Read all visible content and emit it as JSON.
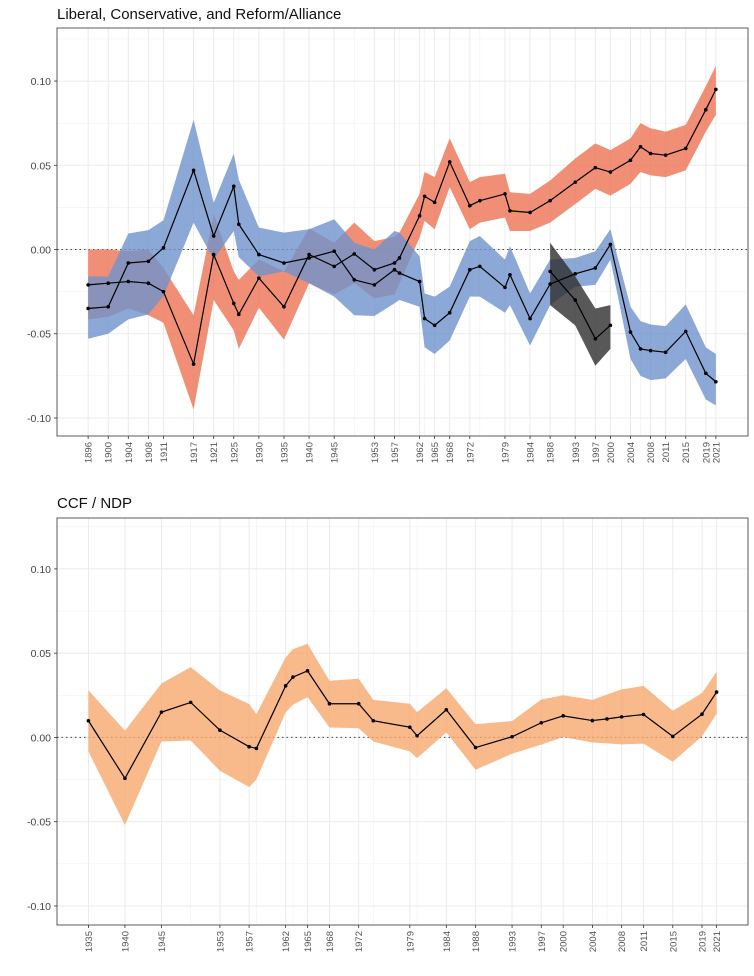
{
  "chart_data": [
    {
      "type": "line",
      "title": "Liberal, Conservative, and Reform/Alliance",
      "xlabel": "",
      "ylabel": "",
      "xlim": [
        1889.8,
        2027.4
      ],
      "ylim": [
        -0.1107,
        0.1315
      ],
      "yticks": [
        -0.1,
        -0.05,
        0.0,
        0.05,
        0.1
      ],
      "ytick_labels": [
        "-0.10",
        "-0.05",
        "0.00",
        "0.05",
        "0.10"
      ],
      "xticks": [
        1896,
        1900,
        1904,
        1908,
        1911,
        1917,
        1921,
        1925,
        1930,
        1935,
        1940,
        1945,
        1953,
        1957,
        1962,
        1965,
        1968,
        1972,
        1979,
        1984,
        1988,
        1993,
        1997,
        2000,
        2004,
        2008,
        2011,
        2015,
        2019,
        2021
      ],
      "minor_x": [
        1926,
        1949,
        1958,
        1963,
        1974,
        1980,
        2006
      ],
      "reference_line": 0,
      "grid": true,
      "legend": "none",
      "series": [
        {
          "color": "#ec7352",
          "x": [
            1896,
            1900,
            1904,
            1908,
            1911,
            1917,
            1921,
            1925,
            1926,
            1930,
            1935,
            1940,
            1945,
            1949,
            1953,
            1957,
            1958,
            1962,
            1963,
            1965,
            1968,
            1972,
            1974,
            1979,
            1980,
            1984,
            1988,
            1993,
            1997,
            2000,
            2004,
            2006,
            2008,
            2011,
            2015,
            2019,
            2021
          ],
          "y": [
            -0.021,
            -0.02,
            -0.019,
            -0.02,
            -0.025,
            -0.068,
            -0.003,
            -0.032,
            -0.0385,
            -0.017,
            -0.034,
            -0.003,
            -0.01,
            -0.0026,
            -0.012,
            -0.008,
            -0.005,
            0.02,
            0.0316,
            0.028,
            0.052,
            0.026,
            0.029,
            0.033,
            0.023,
            0.022,
            0.029,
            0.04,
            0.0486,
            0.046,
            0.053,
            0.061,
            0.057,
            0.056,
            0.06,
            0.083,
            0.095
          ],
          "upper": [
            0.0,
            0.0,
            -0.001,
            0.0,
            -0.011,
            -0.039,
            0.021,
            -0.013,
            -0.018,
            -0.006,
            -0.013,
            0.0125,
            0.004,
            0.016,
            0.005,
            0.0075,
            0.01,
            0.033,
            0.046,
            0.043,
            0.066,
            0.04,
            0.043,
            0.045,
            0.034,
            0.033,
            0.041,
            0.054,
            0.063,
            0.059,
            0.066,
            0.075,
            0.072,
            0.07,
            0.074,
            0.097,
            0.109
          ],
          "lower": [
            -0.0415,
            -0.04,
            -0.035,
            -0.039,
            -0.0435,
            -0.095,
            -0.03,
            -0.048,
            -0.059,
            -0.0346,
            -0.0535,
            -0.02,
            -0.0267,
            -0.02,
            -0.029,
            -0.0267,
            -0.02,
            0.007,
            0.017,
            0.012,
            0.037,
            0.012,
            0.016,
            0.019,
            0.011,
            0.011,
            0.016,
            0.027,
            0.036,
            0.032,
            0.039,
            0.046,
            0.044,
            0.043,
            0.047,
            0.07,
            0.08
          ]
        },
        {
          "color": "#6f92cc",
          "x": [
            1896,
            1900,
            1904,
            1908,
            1911,
            1917,
            1921,
            1925,
            1926,
            1930,
            1935,
            1940,
            1945,
            1949,
            1953,
            1957,
            1958,
            1962,
            1963,
            1965,
            1968,
            1972,
            1974,
            1979,
            1980,
            1984,
            1988,
            1993,
            1997,
            2000,
            2004,
            2006,
            2008,
            2011,
            2015,
            2019,
            2021
          ],
          "y": [
            -0.035,
            -0.034,
            -0.008,
            -0.007,
            0.001,
            0.047,
            0.008,
            0.0375,
            0.015,
            -0.003,
            -0.008,
            -0.005,
            -0.001,
            -0.018,
            -0.021,
            -0.012,
            -0.014,
            -0.019,
            -0.041,
            -0.045,
            -0.0375,
            -0.012,
            -0.01,
            -0.0225,
            -0.015,
            -0.041,
            -0.0205,
            -0.0144,
            -0.011,
            0.003,
            -0.049,
            -0.059,
            -0.06,
            -0.061,
            -0.0486,
            -0.0735,
            -0.0785
          ],
          "upper": [
            -0.016,
            -0.016,
            0.0095,
            0.0115,
            0.0174,
            0.077,
            0.0277,
            0.057,
            0.0415,
            0.013,
            0.01,
            0.012,
            0.018,
            0.004,
            0.0,
            0.011,
            0.01,
            -0.004,
            -0.026,
            -0.028,
            -0.022,
            0.005,
            0.008,
            -0.006,
            0.002,
            -0.026,
            -0.006,
            -0.005,
            -0.001,
            0.012,
            -0.034,
            -0.0425,
            -0.0445,
            -0.0455,
            -0.0326,
            -0.058,
            -0.062
          ],
          "lower": [
            -0.053,
            -0.05,
            -0.0415,
            -0.0385,
            -0.0277,
            0.016,
            -0.006,
            0.011,
            -0.0045,
            -0.016,
            -0.013,
            -0.02,
            -0.028,
            -0.039,
            -0.0395,
            -0.032,
            -0.03,
            -0.034,
            -0.058,
            -0.062,
            -0.054,
            -0.028,
            -0.028,
            -0.0375,
            -0.033,
            -0.057,
            -0.033,
            -0.022,
            -0.021,
            -0.006,
            -0.065,
            -0.075,
            -0.0775,
            -0.0765,
            -0.065,
            -0.089,
            -0.0925
          ]
        },
        {
          "color": "#2e2e2e",
          "x": [
            1988,
            1993,
            1997,
            2000
          ],
          "y": [
            -0.013,
            -0.03,
            -0.053,
            -0.045
          ],
          "upper": [
            0.004,
            -0.016,
            -0.035,
            -0.033
          ],
          "lower": [
            -0.033,
            -0.045,
            -0.069,
            -0.059
          ]
        }
      ]
    },
    {
      "type": "line",
      "title": "CCF / NDP",
      "xlabel": "",
      "ylabel": "",
      "xlim": [
        1930.7,
        2025.3
      ],
      "ylim": [
        -0.1113,
        0.1302
      ],
      "yticks": [
        -0.1,
        -0.05,
        0.0,
        0.05,
        0.1
      ],
      "ytick_labels": [
        "-0.10",
        "-0.05",
        "0.00",
        "0.05",
        "0.10"
      ],
      "xticks": [
        1935,
        1940,
        1945,
        1953,
        1957,
        1962,
        1965,
        1968,
        1972,
        1979,
        1984,
        1988,
        1993,
        1997,
        2000,
        2004,
        2008,
        2011,
        2015,
        2019,
        2021
      ],
      "minor_x": [
        1949,
        1958,
        1963,
        1974,
        1980,
        2006
      ],
      "reference_line": 0,
      "grid": true,
      "legend": "none",
      "series": [
        {
          "color": "#f6a86e",
          "x": [
            1935,
            1940,
            1945,
            1949,
            1953,
            1957,
            1958,
            1962,
            1963,
            1965,
            1968,
            1972,
            1974,
            1979,
            1980,
            1984,
            1988,
            1993,
            1997,
            2000,
            2004,
            2006,
            2008,
            2011,
            2015,
            2019,
            2021
          ],
          "y": [
            0.0099,
            -0.0243,
            0.015,
            0.0208,
            0.0043,
            -0.0055,
            -0.0065,
            0.0306,
            0.0358,
            0.0395,
            0.02,
            0.02,
            0.0099,
            0.0061,
            0.001,
            0.0164,
            -0.006,
            0.0004,
            0.0087,
            0.0128,
            0.01,
            0.011,
            0.0122,
            0.0136,
            0.0006,
            0.0138,
            0.0269
          ],
          "upper": [
            0.028,
            0.004,
            0.032,
            0.0417,
            0.0279,
            0.0198,
            0.0138,
            0.0474,
            0.0524,
            0.0555,
            0.0336,
            0.0348,
            0.0223,
            0.02,
            0.015,
            0.0292,
            0.0079,
            0.0097,
            0.0225,
            0.025,
            0.0223,
            0.0255,
            0.0285,
            0.0306,
            0.0158,
            0.0263,
            0.039
          ],
          "lower": [
            -0.0083,
            -0.052,
            -0.0024,
            -0.0018,
            -0.0198,
            -0.0294,
            -0.025,
            0.0148,
            0.0194,
            0.0239,
            0.0059,
            0.0055,
            -0.0024,
            -0.0083,
            -0.0123,
            0.003,
            -0.0192,
            -0.0097,
            -0.0043,
            0.0002,
            -0.003,
            -0.0035,
            -0.0041,
            -0.0037,
            -0.0144,
            0.0006,
            0.014
          ]
        }
      ]
    }
  ]
}
